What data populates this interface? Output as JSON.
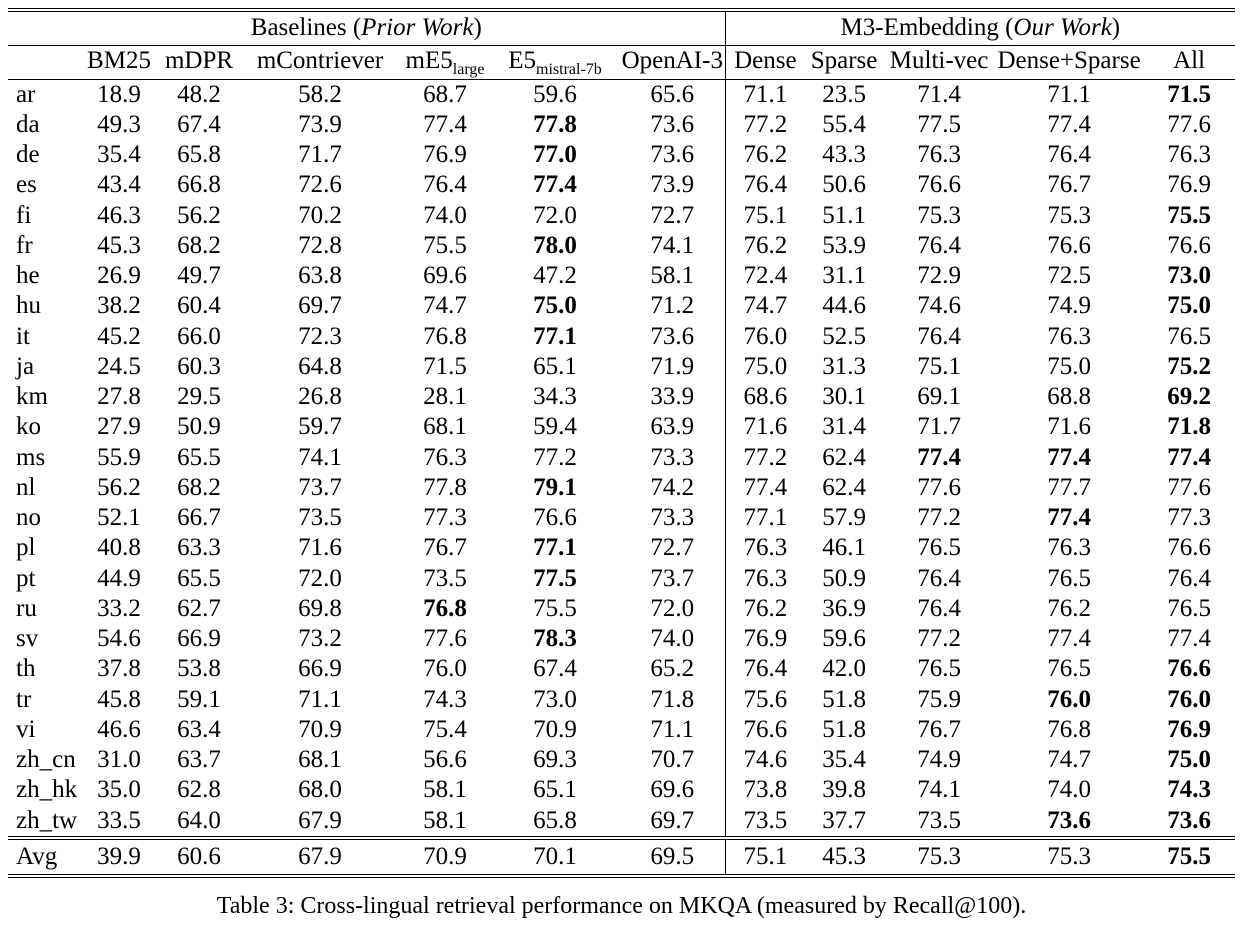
{
  "table": {
    "groups": [
      {
        "prefix": "Baselines (",
        "italic": "Prior Work",
        "suffix": ")"
      },
      {
        "prefix": "M3-Embedding (",
        "italic": "Our Work",
        "suffix": ")"
      }
    ],
    "columns": [
      {
        "main": "BM25"
      },
      {
        "main": "mDPR"
      },
      {
        "main": "mContriever"
      },
      {
        "main": "mE5",
        "sub": "large"
      },
      {
        "main": "E5",
        "sub": "mistral-7b"
      },
      {
        "main": "OpenAI-3"
      },
      {
        "main": "Dense"
      },
      {
        "main": "Sparse"
      },
      {
        "main": "Multi-vec"
      },
      {
        "main": "Dense+Sparse"
      },
      {
        "main": "All"
      }
    ],
    "rows": [
      {
        "lang": "ar",
        "values": [
          "18.9",
          "48.2",
          "58.2",
          "68.7",
          "59.6",
          "65.6",
          "71.1",
          "23.5",
          "71.4",
          "71.1",
          "71.5"
        ],
        "bold": [
          10
        ]
      },
      {
        "lang": "da",
        "values": [
          "49.3",
          "67.4",
          "73.9",
          "77.4",
          "77.8",
          "73.6",
          "77.2",
          "55.4",
          "77.5",
          "77.4",
          "77.6"
        ],
        "bold": [
          4
        ]
      },
      {
        "lang": "de",
        "values": [
          "35.4",
          "65.8",
          "71.7",
          "76.9",
          "77.0",
          "73.6",
          "76.2",
          "43.3",
          "76.3",
          "76.4",
          "76.3"
        ],
        "bold": [
          4
        ]
      },
      {
        "lang": "es",
        "values": [
          "43.4",
          "66.8",
          "72.6",
          "76.4",
          "77.4",
          "73.9",
          "76.4",
          "50.6",
          "76.6",
          "76.7",
          "76.9"
        ],
        "bold": [
          4
        ]
      },
      {
        "lang": "fi",
        "values": [
          "46.3",
          "56.2",
          "70.2",
          "74.0",
          "72.0",
          "72.7",
          "75.1",
          "51.1",
          "75.3",
          "75.3",
          "75.5"
        ],
        "bold": [
          10
        ]
      },
      {
        "lang": "fr",
        "values": [
          "45.3",
          "68.2",
          "72.8",
          "75.5",
          "78.0",
          "74.1",
          "76.2",
          "53.9",
          "76.4",
          "76.6",
          "76.6"
        ],
        "bold": [
          4
        ]
      },
      {
        "lang": "he",
        "values": [
          "26.9",
          "49.7",
          "63.8",
          "69.6",
          "47.2",
          "58.1",
          "72.4",
          "31.1",
          "72.9",
          "72.5",
          "73.0"
        ],
        "bold": [
          10
        ]
      },
      {
        "lang": "hu",
        "values": [
          "38.2",
          "60.4",
          "69.7",
          "74.7",
          "75.0",
          "71.2",
          "74.7",
          "44.6",
          "74.6",
          "74.9",
          "75.0"
        ],
        "bold": [
          4,
          10
        ]
      },
      {
        "lang": "it",
        "values": [
          "45.2",
          "66.0",
          "72.3",
          "76.8",
          "77.1",
          "73.6",
          "76.0",
          "52.5",
          "76.4",
          "76.3",
          "76.5"
        ],
        "bold": [
          4
        ]
      },
      {
        "lang": "ja",
        "values": [
          "24.5",
          "60.3",
          "64.8",
          "71.5",
          "65.1",
          "71.9",
          "75.0",
          "31.3",
          "75.1",
          "75.0",
          "75.2"
        ],
        "bold": [
          10
        ]
      },
      {
        "lang": "km",
        "values": [
          "27.8",
          "29.5",
          "26.8",
          "28.1",
          "34.3",
          "33.9",
          "68.6",
          "30.1",
          "69.1",
          "68.8",
          "69.2"
        ],
        "bold": [
          10
        ]
      },
      {
        "lang": "ko",
        "values": [
          "27.9",
          "50.9",
          "59.7",
          "68.1",
          "59.4",
          "63.9",
          "71.6",
          "31.4",
          "71.7",
          "71.6",
          "71.8"
        ],
        "bold": [
          10
        ]
      },
      {
        "lang": "ms",
        "values": [
          "55.9",
          "65.5",
          "74.1",
          "76.3",
          "77.2",
          "73.3",
          "77.2",
          "62.4",
          "77.4",
          "77.4",
          "77.4"
        ],
        "bold": [
          8,
          9,
          10
        ]
      },
      {
        "lang": "nl",
        "values": [
          "56.2",
          "68.2",
          "73.7",
          "77.8",
          "79.1",
          "74.2",
          "77.4",
          "62.4",
          "77.6",
          "77.7",
          "77.6"
        ],
        "bold": [
          4
        ]
      },
      {
        "lang": "no",
        "values": [
          "52.1",
          "66.7",
          "73.5",
          "77.3",
          "76.6",
          "73.3",
          "77.1",
          "57.9",
          "77.2",
          "77.4",
          "77.3"
        ],
        "bold": [
          9
        ]
      },
      {
        "lang": "pl",
        "values": [
          "40.8",
          "63.3",
          "71.6",
          "76.7",
          "77.1",
          "72.7",
          "76.3",
          "46.1",
          "76.5",
          "76.3",
          "76.6"
        ],
        "bold": [
          4
        ]
      },
      {
        "lang": "pt",
        "values": [
          "44.9",
          "65.5",
          "72.0",
          "73.5",
          "77.5",
          "73.7",
          "76.3",
          "50.9",
          "76.4",
          "76.5",
          "76.4"
        ],
        "bold": [
          4
        ]
      },
      {
        "lang": "ru",
        "values": [
          "33.2",
          "62.7",
          "69.8",
          "76.8",
          "75.5",
          "72.0",
          "76.2",
          "36.9",
          "76.4",
          "76.2",
          "76.5"
        ],
        "bold": [
          3
        ]
      },
      {
        "lang": "sv",
        "values": [
          "54.6",
          "66.9",
          "73.2",
          "77.6",
          "78.3",
          "74.0",
          "76.9",
          "59.6",
          "77.2",
          "77.4",
          "77.4"
        ],
        "bold": [
          4
        ]
      },
      {
        "lang": "th",
        "values": [
          "37.8",
          "53.8",
          "66.9",
          "76.0",
          "67.4",
          "65.2",
          "76.4",
          "42.0",
          "76.5",
          "76.5",
          "76.6"
        ],
        "bold": [
          10
        ]
      },
      {
        "lang": "tr",
        "values": [
          "45.8",
          "59.1",
          "71.1",
          "74.3",
          "73.0",
          "71.8",
          "75.6",
          "51.8",
          "75.9",
          "76.0",
          "76.0"
        ],
        "bold": [
          9,
          10
        ]
      },
      {
        "lang": "vi",
        "values": [
          "46.6",
          "63.4",
          "70.9",
          "75.4",
          "70.9",
          "71.1",
          "76.6",
          "51.8",
          "76.7",
          "76.8",
          "76.9"
        ],
        "bold": [
          10
        ]
      },
      {
        "lang": "zh_cn",
        "values": [
          "31.0",
          "63.7",
          "68.1",
          "56.6",
          "69.3",
          "70.7",
          "74.6",
          "35.4",
          "74.9",
          "74.7",
          "75.0"
        ],
        "bold": [
          10
        ]
      },
      {
        "lang": "zh_hk",
        "values": [
          "35.0",
          "62.8",
          "68.0",
          "58.1",
          "65.1",
          "69.6",
          "73.8",
          "39.8",
          "74.1",
          "74.0",
          "74.3"
        ],
        "bold": [
          10
        ]
      },
      {
        "lang": "zh_tw",
        "values": [
          "33.5",
          "64.0",
          "67.9",
          "58.1",
          "65.8",
          "69.7",
          "73.5",
          "37.7",
          "73.5",
          "73.6",
          "73.6"
        ],
        "bold": [
          9,
          10
        ]
      }
    ],
    "avg_row": {
      "lang": "Avg",
      "values": [
        "39.9",
        "60.6",
        "67.9",
        "70.9",
        "70.1",
        "69.5",
        "75.1",
        "45.3",
        "75.3",
        "75.3",
        "75.5"
      ],
      "bold": [
        10
      ]
    }
  },
  "caption": "Table 3: Cross-lingual retrieval performance on MKQA (measured by Recall@100)."
}
